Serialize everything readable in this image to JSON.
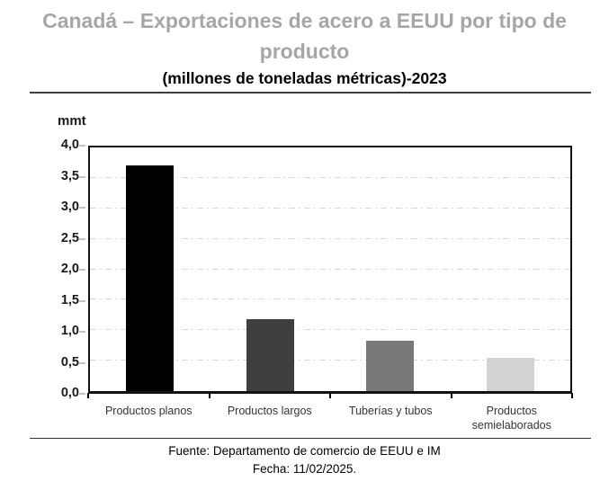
{
  "header": {
    "title": "Canadá – Exportaciones de acero a EEUU por tipo de producto",
    "subtitle": "(millones de toneladas métricas)-2023"
  },
  "footer": {
    "source": "Fuente: Departamento de comercio de EEUU e IM",
    "date": "Fecha: 11/02/2025."
  },
  "chart_data": {
    "type": "bar",
    "title": "Canadá – Exportaciones de acero a EEUU por tipo de producto",
    "subtitle": "(millones de toneladas métricas)-2023",
    "unit_label": "mmt",
    "categories": [
      "Productos planos",
      "Productos largos",
      "Tuberías y tubos",
      "Productos semielaborados"
    ],
    "values": [
      3.7,
      1.18,
      0.82,
      0.55
    ],
    "colors": [
      "#000000",
      "#3f3f3f",
      "#787878",
      "#d2d2d2"
    ],
    "ylim": [
      0,
      4
    ],
    "y_ticks": [
      {
        "v": 0,
        "label": "0,0"
      },
      {
        "v": 0.5,
        "label": "0,5"
      },
      {
        "v": 1,
        "label": "1,0"
      },
      {
        "v": 1.5,
        "label": "1,5"
      },
      {
        "v": 2,
        "label": "2,0"
      },
      {
        "v": 2.5,
        "label": "2,5"
      },
      {
        "v": 3,
        "label": "3,0"
      },
      {
        "v": 3.5,
        "label": "3,5"
      },
      {
        "v": 4,
        "label": "4,0"
      }
    ],
    "grid": "horizontal-dash-dot",
    "legend": "none",
    "title_color": "#a6a6a6",
    "xlabel": "",
    "ylabel": "mmt"
  }
}
